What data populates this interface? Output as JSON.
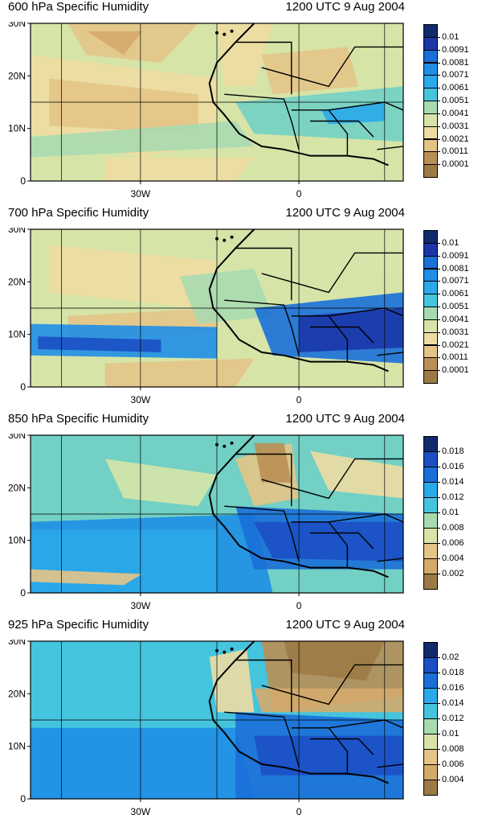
{
  "panels": [
    {
      "title": "600 hPa Specific Humidity",
      "date": "1200 UTC 9 Aug 2004",
      "colorbar_labels": [
        "0.01",
        "0.0091",
        "0.0081",
        "0.0071",
        "0.0061",
        "0.0051",
        "0.0041",
        "0.0031",
        "0.0021",
        "0.0011",
        "0.0001"
      ]
    },
    {
      "title": "700 hPa Specific Humidity",
      "date": "1200 UTC 9 Aug 2004",
      "colorbar_labels": [
        "0.01",
        "0.0091",
        "0.0081",
        "0.0071",
        "0.0061",
        "0.0051",
        "0.0041",
        "0.0031",
        "0.0021",
        "0.0011",
        "0.0001"
      ]
    },
    {
      "title": "850 hPa Specific Humidity",
      "date": "1200 UTC 9 Aug 2004",
      "colorbar_labels": [
        "0.018",
        "0.016",
        "0.014",
        "0.012",
        "0.01",
        "0.008",
        "0.006",
        "0.004",
        "0.002"
      ]
    },
    {
      "title": "925 hPa Specific Humidity",
      "date": "1200 UTC 9 Aug 2004",
      "colorbar_labels": [
        "0.02",
        "0.018",
        "0.016",
        "0.014",
        "0.012",
        "0.01",
        "0.008",
        "0.006",
        "0.004"
      ]
    }
  ],
  "axes": {
    "lat_labels": [
      "30N",
      "20N",
      "10N",
      "0"
    ],
    "lon_labels": [
      "30W",
      "0"
    ]
  },
  "colors": {
    "scale": [
      "#9c7a46",
      "#b98f55",
      "#d4aa6b",
      "#e4c487",
      "#eedca2",
      "#d6e4a8",
      "#a8dab0",
      "#72d0c4",
      "#45c4de",
      "#2aa9ea",
      "#1e8ee6",
      "#1a6fd8",
      "#1c4fc4",
      "#1b36a8",
      "#102a6c"
    ],
    "coast": "#000000",
    "grid": "#000000"
  }
}
